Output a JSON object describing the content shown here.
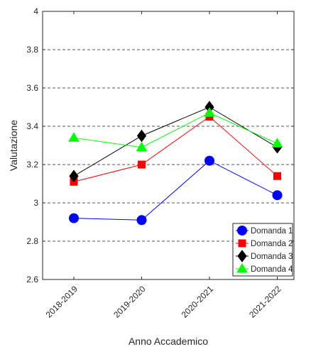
{
  "chart_data": {
    "type": "line",
    "title": "",
    "xlabel": "Anno Accademico",
    "ylabel": "Valutazione",
    "categories": [
      "2018-2019",
      "2019-2020",
      "2020-2021",
      "2021-2022"
    ],
    "ylim": [
      2.6,
      4.0
    ],
    "yticks": [
      "2.6",
      "2.8",
      "3",
      "3.2",
      "3.4",
      "3.6",
      "3.8",
      "4"
    ],
    "grid": "horizontal dashed",
    "legend_position": "bottom-right",
    "series": [
      {
        "name": "Domanda 1",
        "marker": "circle",
        "color": "#0000ff",
        "values": [
          2.92,
          2.91,
          3.22,
          3.04
        ]
      },
      {
        "name": "Domanda 2",
        "marker": "square",
        "color": "#ff0000",
        "values": [
          3.11,
          3.2,
          3.45,
          3.14
        ]
      },
      {
        "name": "Domanda 3",
        "marker": "diamond",
        "color": "#000000",
        "values": [
          3.14,
          3.35,
          3.5,
          3.29
        ]
      },
      {
        "name": "Domanda 4",
        "marker": "triangle",
        "color": "#00ff00",
        "values": [
          3.34,
          3.29,
          3.47,
          3.31
        ]
      }
    ]
  }
}
